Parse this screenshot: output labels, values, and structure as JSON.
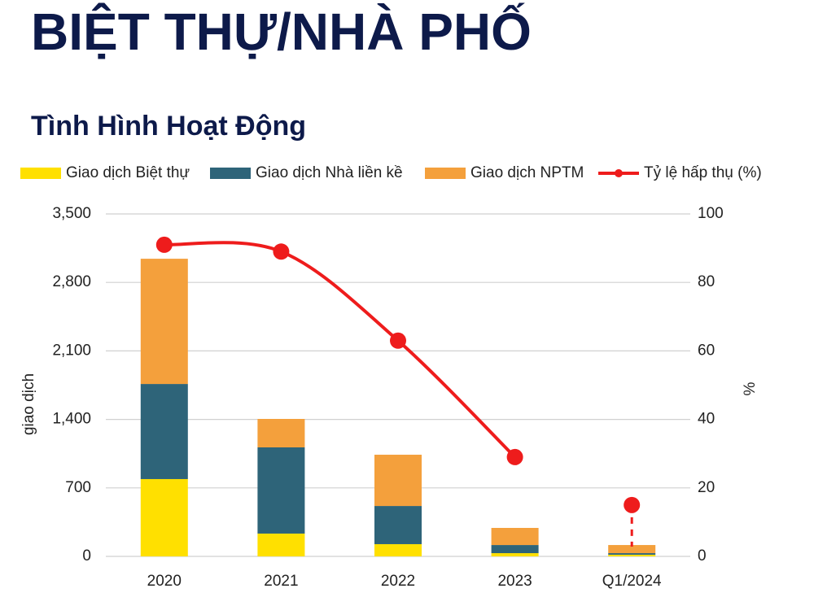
{
  "chart_data": {
    "type": "stacked-bar-line",
    "title": "BIỆT THỰ/NHÀ PHỐ",
    "subtitle": "Tình Hình Hoạt Động",
    "ylabel": "giao dịch",
    "y2label": "%",
    "categories": [
      "2020",
      "2021",
      "2022",
      "2023",
      "Q1/2024"
    ],
    "series": [
      {
        "name": "Giao dịch Biệt thự",
        "color": "#ffe000",
        "values": [
          790,
          233,
          125,
          33,
          17
        ]
      },
      {
        "name": "Giao dịch Nhà liền kề",
        "color": "#2e6479",
        "values": [
          972,
          881,
          390,
          83,
          16
        ]
      },
      {
        "name": "Giao dịch NPTM",
        "color": "#f4a03c",
        "values": [
          1280,
          291,
          524,
          175,
          83
        ]
      },
      {
        "name": "Tỷ lệ hấp thụ (%)",
        "color": "#ee1c1c",
        "axis": "y2",
        "type": "line",
        "values": [
          91,
          89,
          63,
          29,
          15
        ]
      }
    ],
    "ylim": [
      0,
      3500
    ],
    "yticks": [
      0,
      {
        "value": 700,
        "label": "700"
      },
      {
        "value": 1400,
        "label": "1,400"
      },
      {
        "value": 2100,
        "label": "2,100"
      },
      {
        "value": 2800,
        "label": "2,800"
      },
      {
        "value": 3500,
        "label": "3,500"
      }
    ],
    "y2lim": [
      0,
      100
    ],
    "y2ticks": [
      0,
      20,
      40,
      60,
      80,
      100
    ],
    "grid": true
  }
}
